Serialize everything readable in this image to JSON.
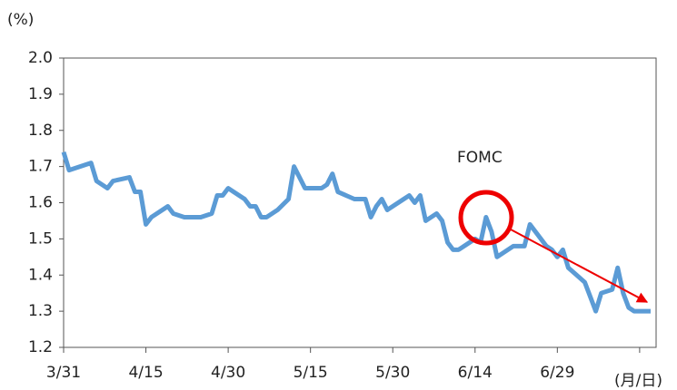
{
  "chart_data": {
    "type": "line",
    "y_unit_label": "(%)",
    "x_axis_label": "(月/日)",
    "annotation": "FOMC",
    "grid": false,
    "xlim": [
      0,
      108
    ],
    "xticks": [
      {
        "value": 0,
        "label": "3/31"
      },
      {
        "value": 15,
        "label": "4/15"
      },
      {
        "value": 30,
        "label": "4/30"
      },
      {
        "value": 45,
        "label": "5/15"
      },
      {
        "value": 60,
        "label": "5/30"
      },
      {
        "value": 75,
        "label": "6/14"
      },
      {
        "value": 90,
        "label": "6/29"
      },
      {
        "value": 105,
        "label": null
      }
    ],
    "ylim": [
      1.2,
      2.0
    ],
    "yticks": [
      1.2,
      1.3,
      1.4,
      1.5,
      1.6,
      1.7,
      1.8,
      1.9,
      {
        "value": 2.0,
        "label": "2.0"
      }
    ],
    "series": [
      {
        "color": "#5b9bd5",
        "x": [
          0,
          1,
          5,
          6,
          8,
          9,
          12,
          13,
          14,
          15,
          16,
          19,
          20,
          22,
          25,
          27,
          28,
          29,
          30,
          33,
          34,
          35,
          36,
          37,
          39,
          41,
          42,
          44,
          47,
          48,
          49,
          50,
          53,
          55,
          56,
          57,
          58,
          59,
          62,
          63,
          64,
          65,
          66,
          68,
          69,
          70,
          71,
          72,
          74,
          75,
          76,
          77,
          78,
          79,
          81,
          82,
          84,
          85,
          88,
          89,
          90,
          91,
          92,
          95,
          96,
          97,
          98,
          100,
          101,
          102,
          103,
          104,
          107
        ],
        "values": [
          1.74,
          1.69,
          1.71,
          1.66,
          1.64,
          1.66,
          1.67,
          1.63,
          1.63,
          1.54,
          1.56,
          1.59,
          1.57,
          1.56,
          1.56,
          1.57,
          1.62,
          1.62,
          1.64,
          1.61,
          1.59,
          1.59,
          1.56,
          1.56,
          1.58,
          1.61,
          1.7,
          1.64,
          1.64,
          1.65,
          1.68,
          1.63,
          1.61,
          1.61,
          1.56,
          1.59,
          1.61,
          1.58,
          1.61,
          1.62,
          1.6,
          1.62,
          1.55,
          1.57,
          1.55,
          1.49,
          1.47,
          1.47,
          1.49,
          1.5,
          1.49,
          1.56,
          1.52,
          1.45,
          1.47,
          1.48,
          1.48,
          1.54,
          1.48,
          1.47,
          1.45,
          1.47,
          1.42,
          1.38,
          1.34,
          1.3,
          1.35,
          1.36,
          1.42,
          1.35,
          1.31,
          1.3,
          1.3
        ]
      }
    ]
  }
}
